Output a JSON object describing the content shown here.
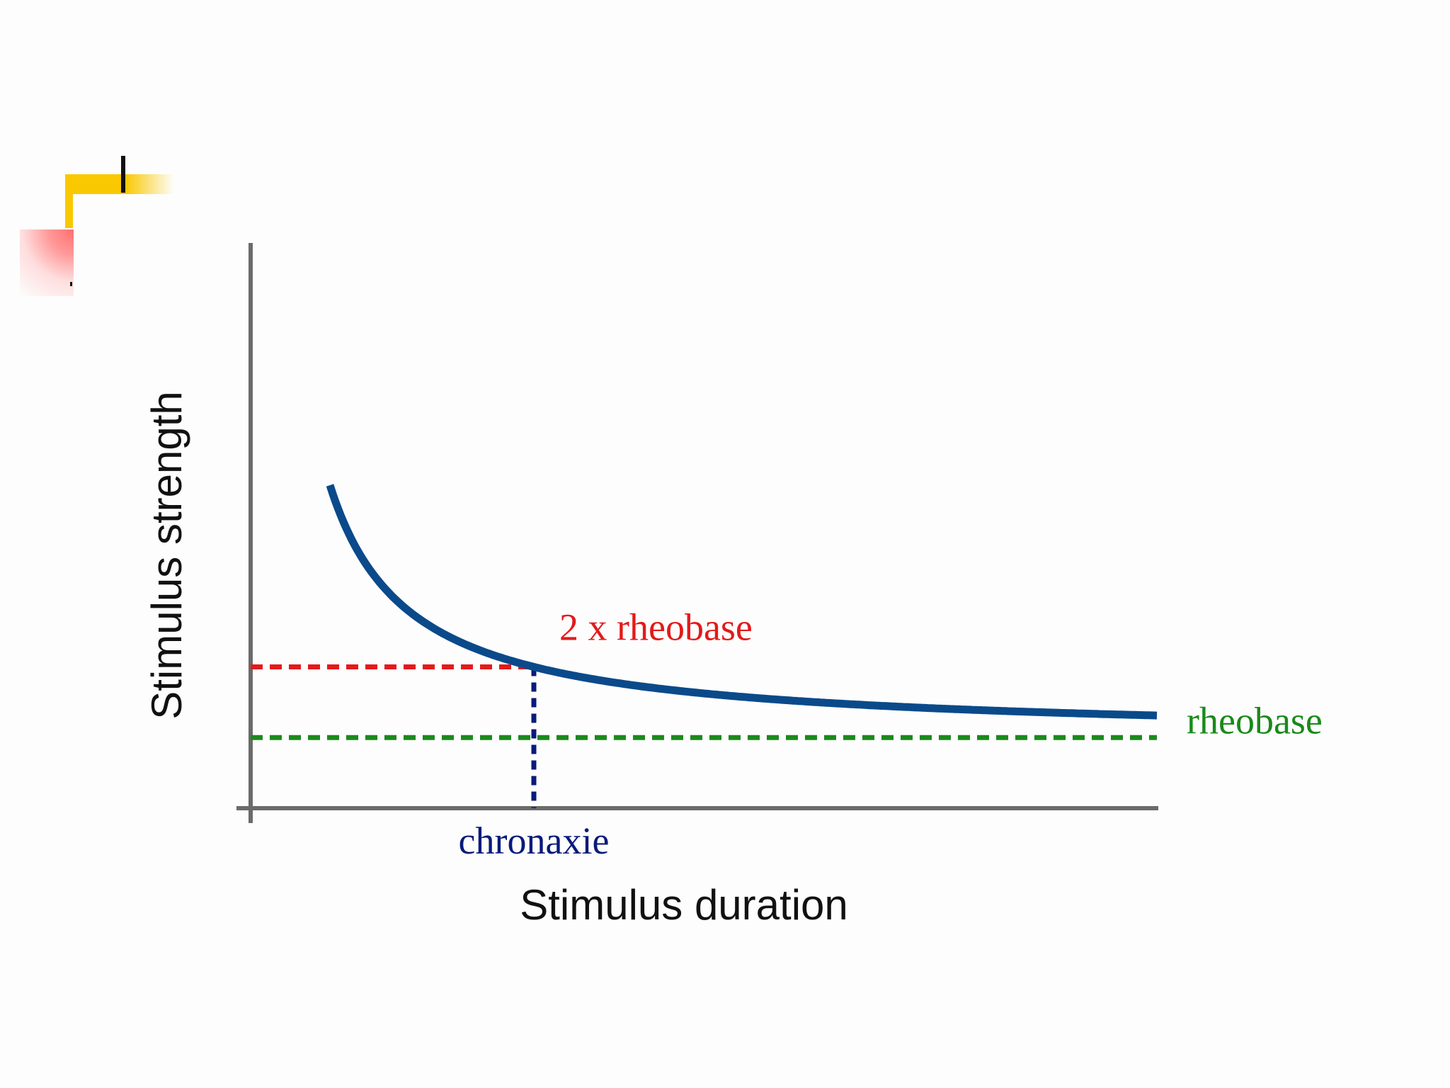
{
  "chart_data": {
    "type": "line",
    "xlabel": "Stimulus duration",
    "ylabel": "Stimulus strength",
    "rheobase": 1,
    "chronaxie": 1,
    "xlim": [
      0,
      3.2
    ],
    "ylim": [
      0,
      8
    ],
    "series": [
      {
        "equation": "strength = rheobase * (1 + chronaxie / duration)",
        "x_range": [
          0.28,
          3.2
        ],
        "color": "#0a4a8a"
      }
    ],
    "annotations": [
      {
        "id": "two_x_rheobase",
        "text": "2 x rheobase",
        "y": 2,
        "color": "#e31a1c",
        "style": "dashed"
      },
      {
        "id": "rheobase",
        "text": "rheobase",
        "y": 1,
        "color": "#1a8a1a",
        "style": "dashed"
      },
      {
        "id": "chronaxie",
        "text": "chronaxie",
        "x": 1,
        "color": "#0a1a7a",
        "style": "dashed"
      }
    ],
    "grid": false,
    "legend": "none"
  }
}
